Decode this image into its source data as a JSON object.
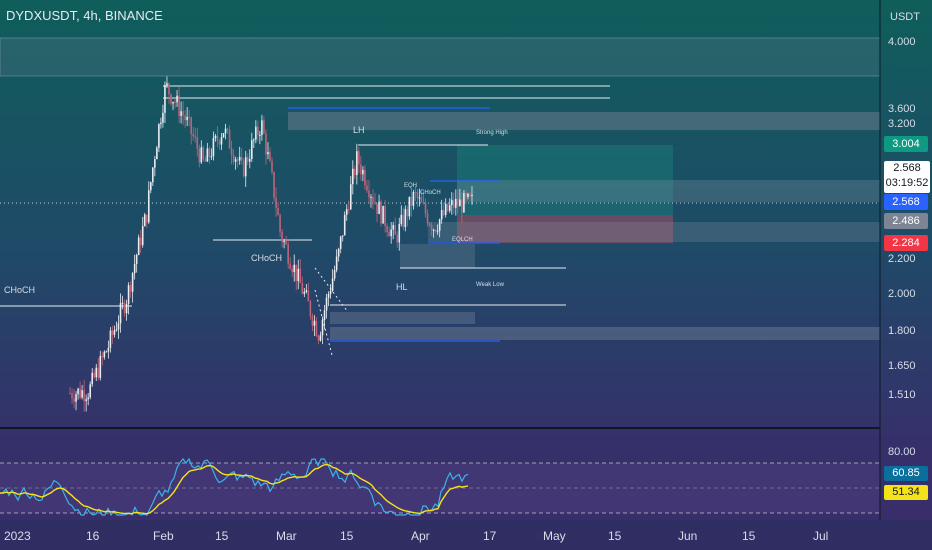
{
  "header": {
    "symbol": "DYDXUSDT, 4h, BINANCE"
  },
  "axis": {
    "currency": "USDT"
  },
  "tags": {
    "price_box_top": "3.004",
    "last_price": "2.568",
    "countdown": "03:19:52",
    "price_blue": "2.568",
    "price_gray": "2.486",
    "price_red": "2.284",
    "rsi_value": "60.85",
    "rsi_ma": "51.34"
  },
  "colors": {
    "accent_teal": "#0e9a82",
    "accent_blue": "#2962ff",
    "accent_red": "#f23645",
    "rsi_line": "#3ab4e8",
    "rsi_ma_line": "#f5e31a",
    "candle_up": "#e8edf2",
    "candle_down": "#c0637a"
  },
  "chart_data": {
    "type": "candlestick",
    "y_scale": "log",
    "price_ticks": [
      "4.000",
      "3.600",
      "3.200",
      "2.200",
      "2.000",
      "1.800",
      "1.650",
      "1.510"
    ],
    "rsi_ticks": [
      "80.00"
    ],
    "x_ticks": [
      "2023",
      "16",
      "Feb",
      "15",
      "Mar",
      "15",
      "Apr",
      "17",
      "May",
      "15",
      "Jun",
      "15",
      "Jul"
    ],
    "series": [
      {
        "name": "close",
        "x": [
          "Jan 11",
          "Jan 16",
          "Jan 22",
          "Jan 26",
          "Jan 29",
          "Feb 1",
          "Feb 8",
          "Feb 15",
          "Feb 20",
          "Feb 26",
          "Mar 1",
          "Mar 6",
          "Mar 9",
          "Mar 11",
          "Mar 14",
          "Mar 17",
          "Mar 21",
          "Mar 25",
          "Mar 29",
          "Apr 3",
          "Apr 7",
          "Apr 11"
        ],
        "values": [
          1.51,
          1.52,
          1.72,
          1.98,
          2.48,
          3.55,
          3.25,
          2.85,
          3.15,
          2.8,
          3.2,
          2.35,
          2.05,
          1.78,
          2.2,
          2.9,
          2.55,
          2.32,
          2.62,
          2.4,
          2.55,
          2.568
        ]
      }
    ],
    "rsi": {
      "name": "RSI",
      "value": 60.85,
      "ma": 51.34
    },
    "annotations": [
      {
        "text": "CHoCH",
        "date": "Jan 1",
        "price": 1.95
      },
      {
        "text": "CHoCH",
        "date": "Feb 16",
        "price": 2.22
      },
      {
        "text": "LH",
        "date": "Mar 18",
        "price": 3.12
      },
      {
        "text": "Strong High",
        "date": "Apr 15",
        "price": 3.06
      },
      {
        "text": "EQH",
        "date": "Apr 5",
        "price": 2.72
      },
      {
        "text": "CHoCH",
        "date": "Apr 9",
        "price": 2.69
      },
      {
        "text": "EQLCH",
        "date": "Apr 11",
        "price": 2.32
      },
      {
        "text": "HL",
        "date": "Apr 1",
        "price": 2.04
      },
      {
        "text": "Weak Low",
        "date": "Apr 15",
        "price": 2.06
      }
    ]
  }
}
